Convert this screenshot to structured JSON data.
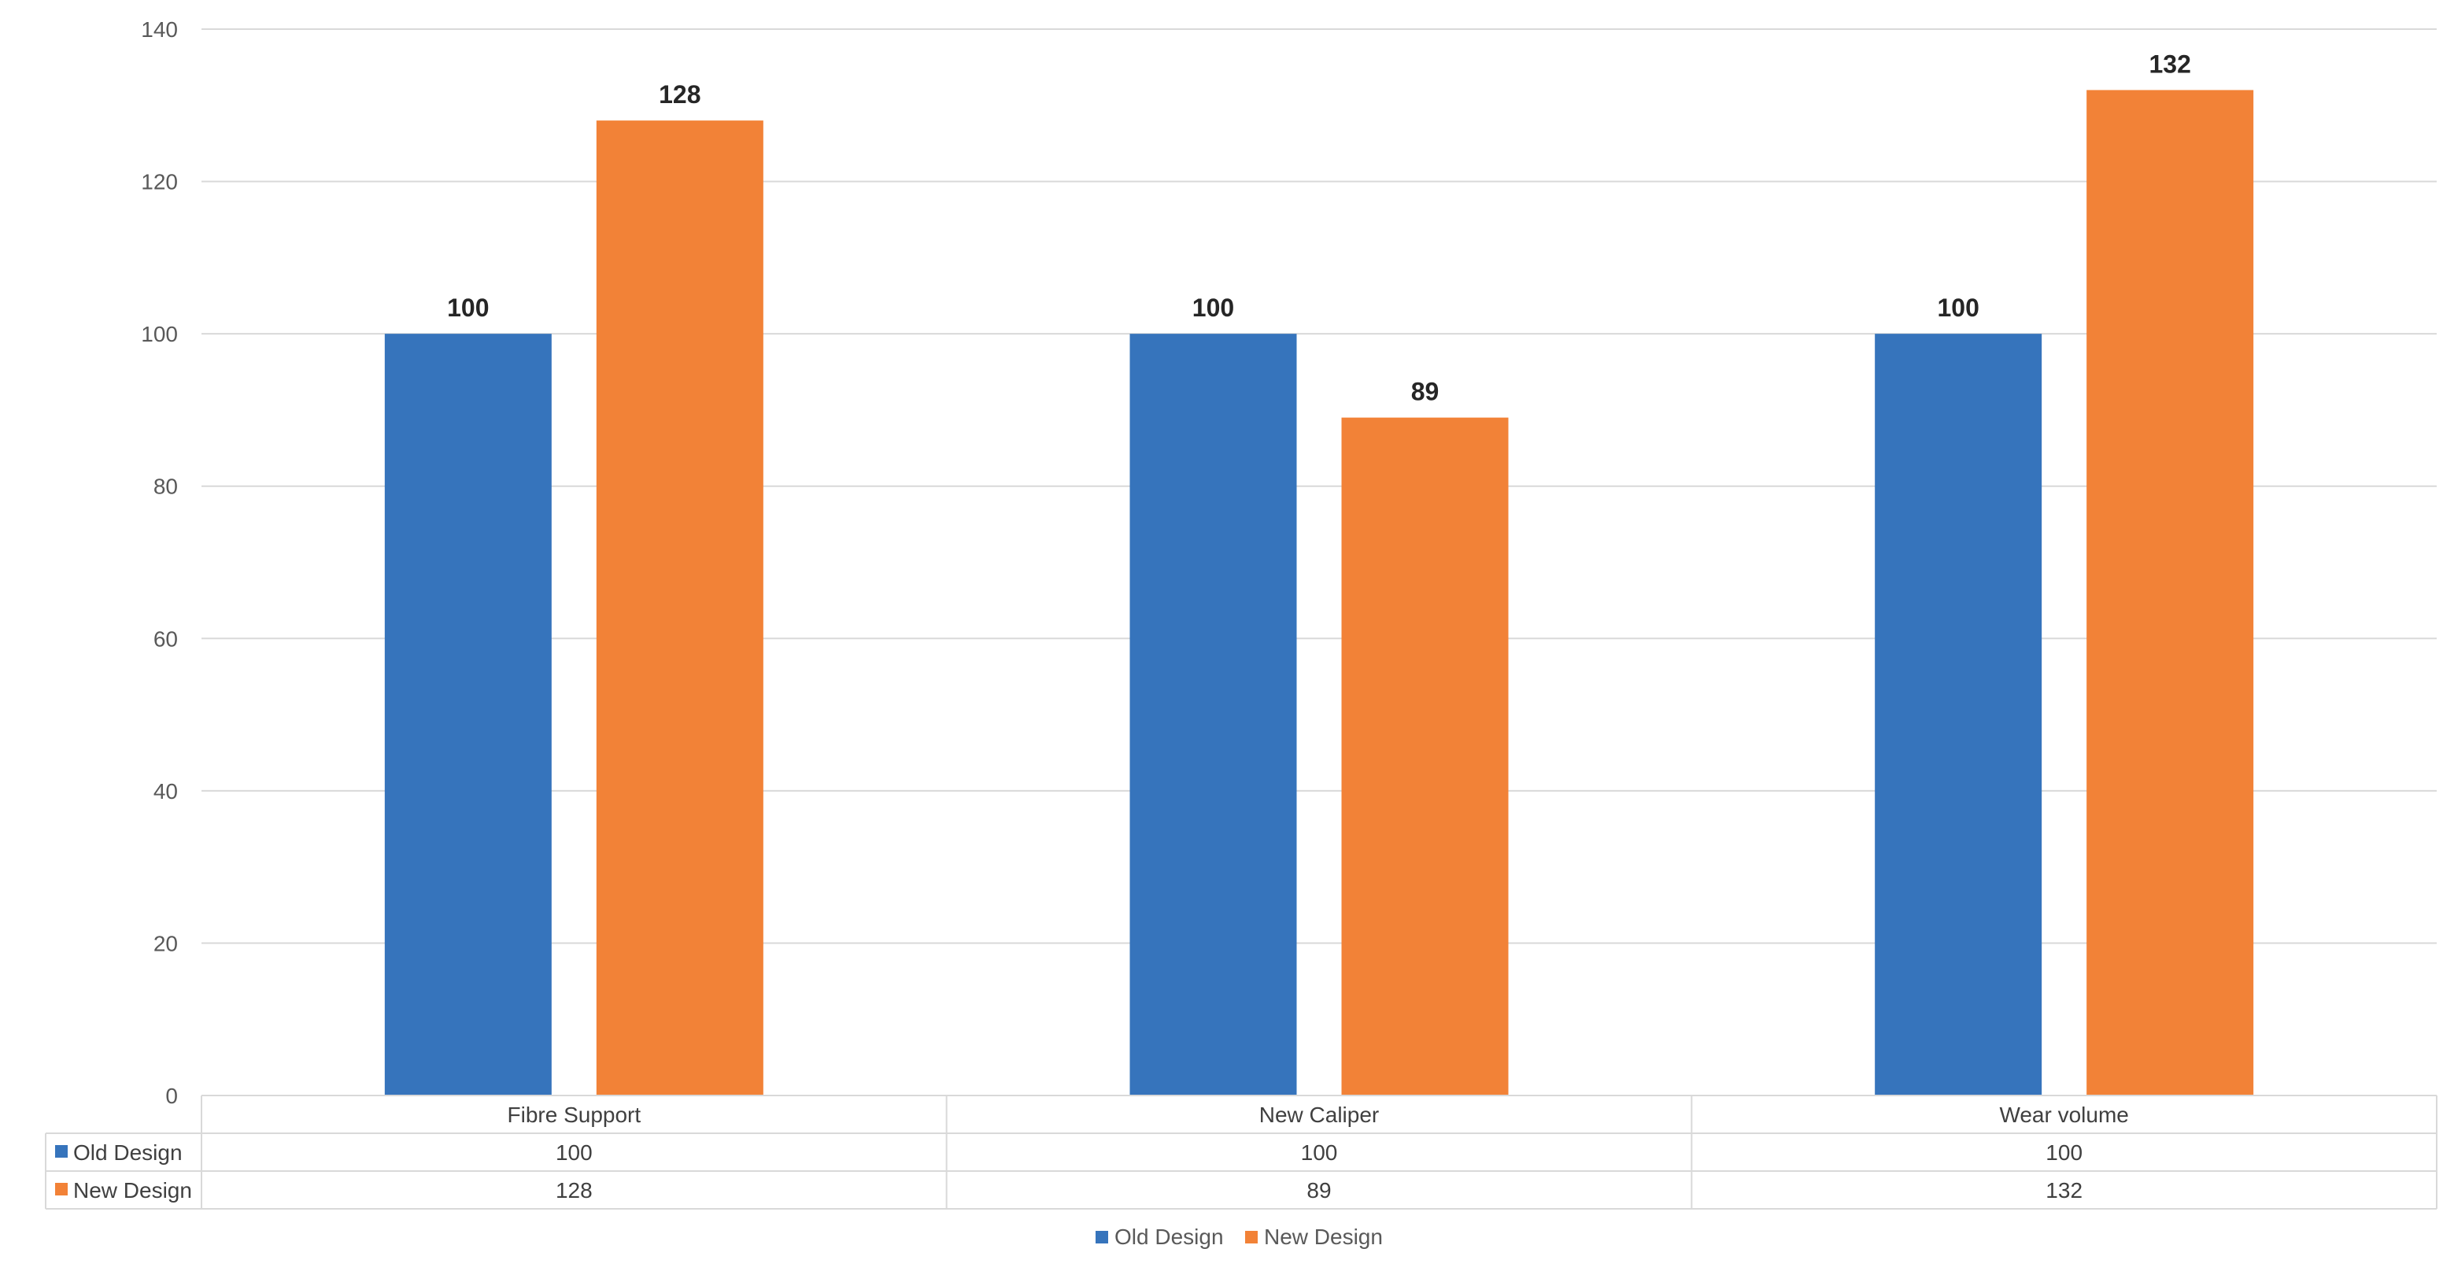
{
  "chart_data": {
    "type": "bar",
    "categories": [
      "Fibre Support",
      "New Caliper",
      "Wear volume"
    ],
    "series": [
      {
        "name": "Old Design",
        "values": [
          100,
          100,
          100
        ],
        "color": "#3674bc"
      },
      {
        "name": "New Design",
        "values": [
          128,
          89,
          132
        ],
        "color": "#f28237"
      }
    ],
    "ylim": [
      0,
      140
    ],
    "yticks": [
      0,
      20,
      40,
      60,
      80,
      100,
      120,
      140
    ],
    "grid": true,
    "data_labels": true,
    "data_table": true,
    "legend_position": "bottom"
  }
}
